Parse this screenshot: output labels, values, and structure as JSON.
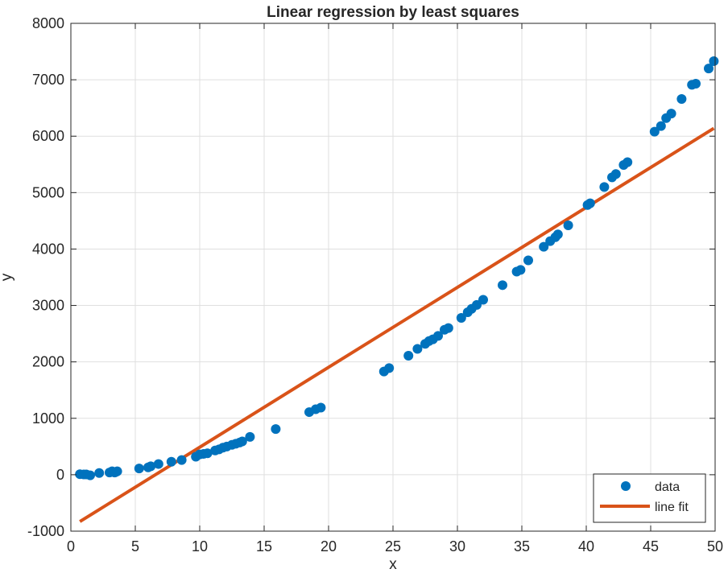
{
  "chart_data": {
    "type": "scatter",
    "title": "Linear regression by least squares",
    "xlabel": "x",
    "ylabel": "y",
    "xlim": [
      0,
      50
    ],
    "ylim": [
      -1000,
      8000
    ],
    "xticks": [
      0,
      5,
      10,
      15,
      20,
      25,
      30,
      35,
      40,
      45,
      50
    ],
    "yticks": [
      -1000,
      0,
      1000,
      2000,
      3000,
      4000,
      5000,
      6000,
      7000,
      8000
    ],
    "grid": true,
    "legend_position": "bottom-right",
    "colors": {
      "data": "#0072BD",
      "fit": "#D95319"
    },
    "series": [
      {
        "name": "data",
        "kind": "scatter",
        "x": [
          0.7,
          1.0,
          1.2,
          1.5,
          2.2,
          3.0,
          3.2,
          3.4,
          3.5,
          3.6,
          5.3,
          6.0,
          6.2,
          6.8,
          7.8,
          8.6,
          9.7,
          10.0,
          10.3,
          10.6,
          11.2,
          11.5,
          11.8,
          12.1,
          12.5,
          12.8,
          13.1,
          13.3,
          13.9,
          15.9,
          18.5,
          19.0,
          19.4,
          24.3,
          24.7,
          26.2,
          26.9,
          27.5,
          27.8,
          28.1,
          28.5,
          29.0,
          29.3,
          30.3,
          30.8,
          31.1,
          31.5,
          32.0,
          33.5,
          34.6,
          34.9,
          35.5,
          36.7,
          37.2,
          37.6,
          37.8,
          38.6,
          40.1,
          40.3,
          41.4,
          42.0,
          42.3,
          42.9,
          43.2,
          45.3,
          45.8,
          46.2,
          46.6,
          47.4,
          48.2,
          48.5,
          49.5,
          49.9
        ],
        "y": [
          10,
          5,
          5,
          -10,
          30,
          40,
          60,
          40,
          50,
          60,
          110,
          130,
          150,
          190,
          230,
          260,
          320,
          360,
          370,
          380,
          430,
          450,
          480,
          500,
          530,
          550,
          570,
          590,
          670,
          810,
          1110,
          1160,
          1190,
          1830,
          1890,
          2110,
          2230,
          2320,
          2370,
          2400,
          2460,
          2570,
          2600,
          2780,
          2880,
          2940,
          3010,
          3100,
          3360,
          3600,
          3630,
          3800,
          4040,
          4140,
          4210,
          4260,
          4420,
          4780,
          4810,
          5100,
          5270,
          5330,
          5490,
          5540,
          6080,
          6180,
          6320,
          6400,
          6660,
          6910,
          6930,
          7200,
          7330
        ]
      },
      {
        "name": "line fit",
        "kind": "line",
        "x": [
          0.7,
          49.9
        ],
        "y": [
          -830,
          6140
        ]
      }
    ]
  }
}
